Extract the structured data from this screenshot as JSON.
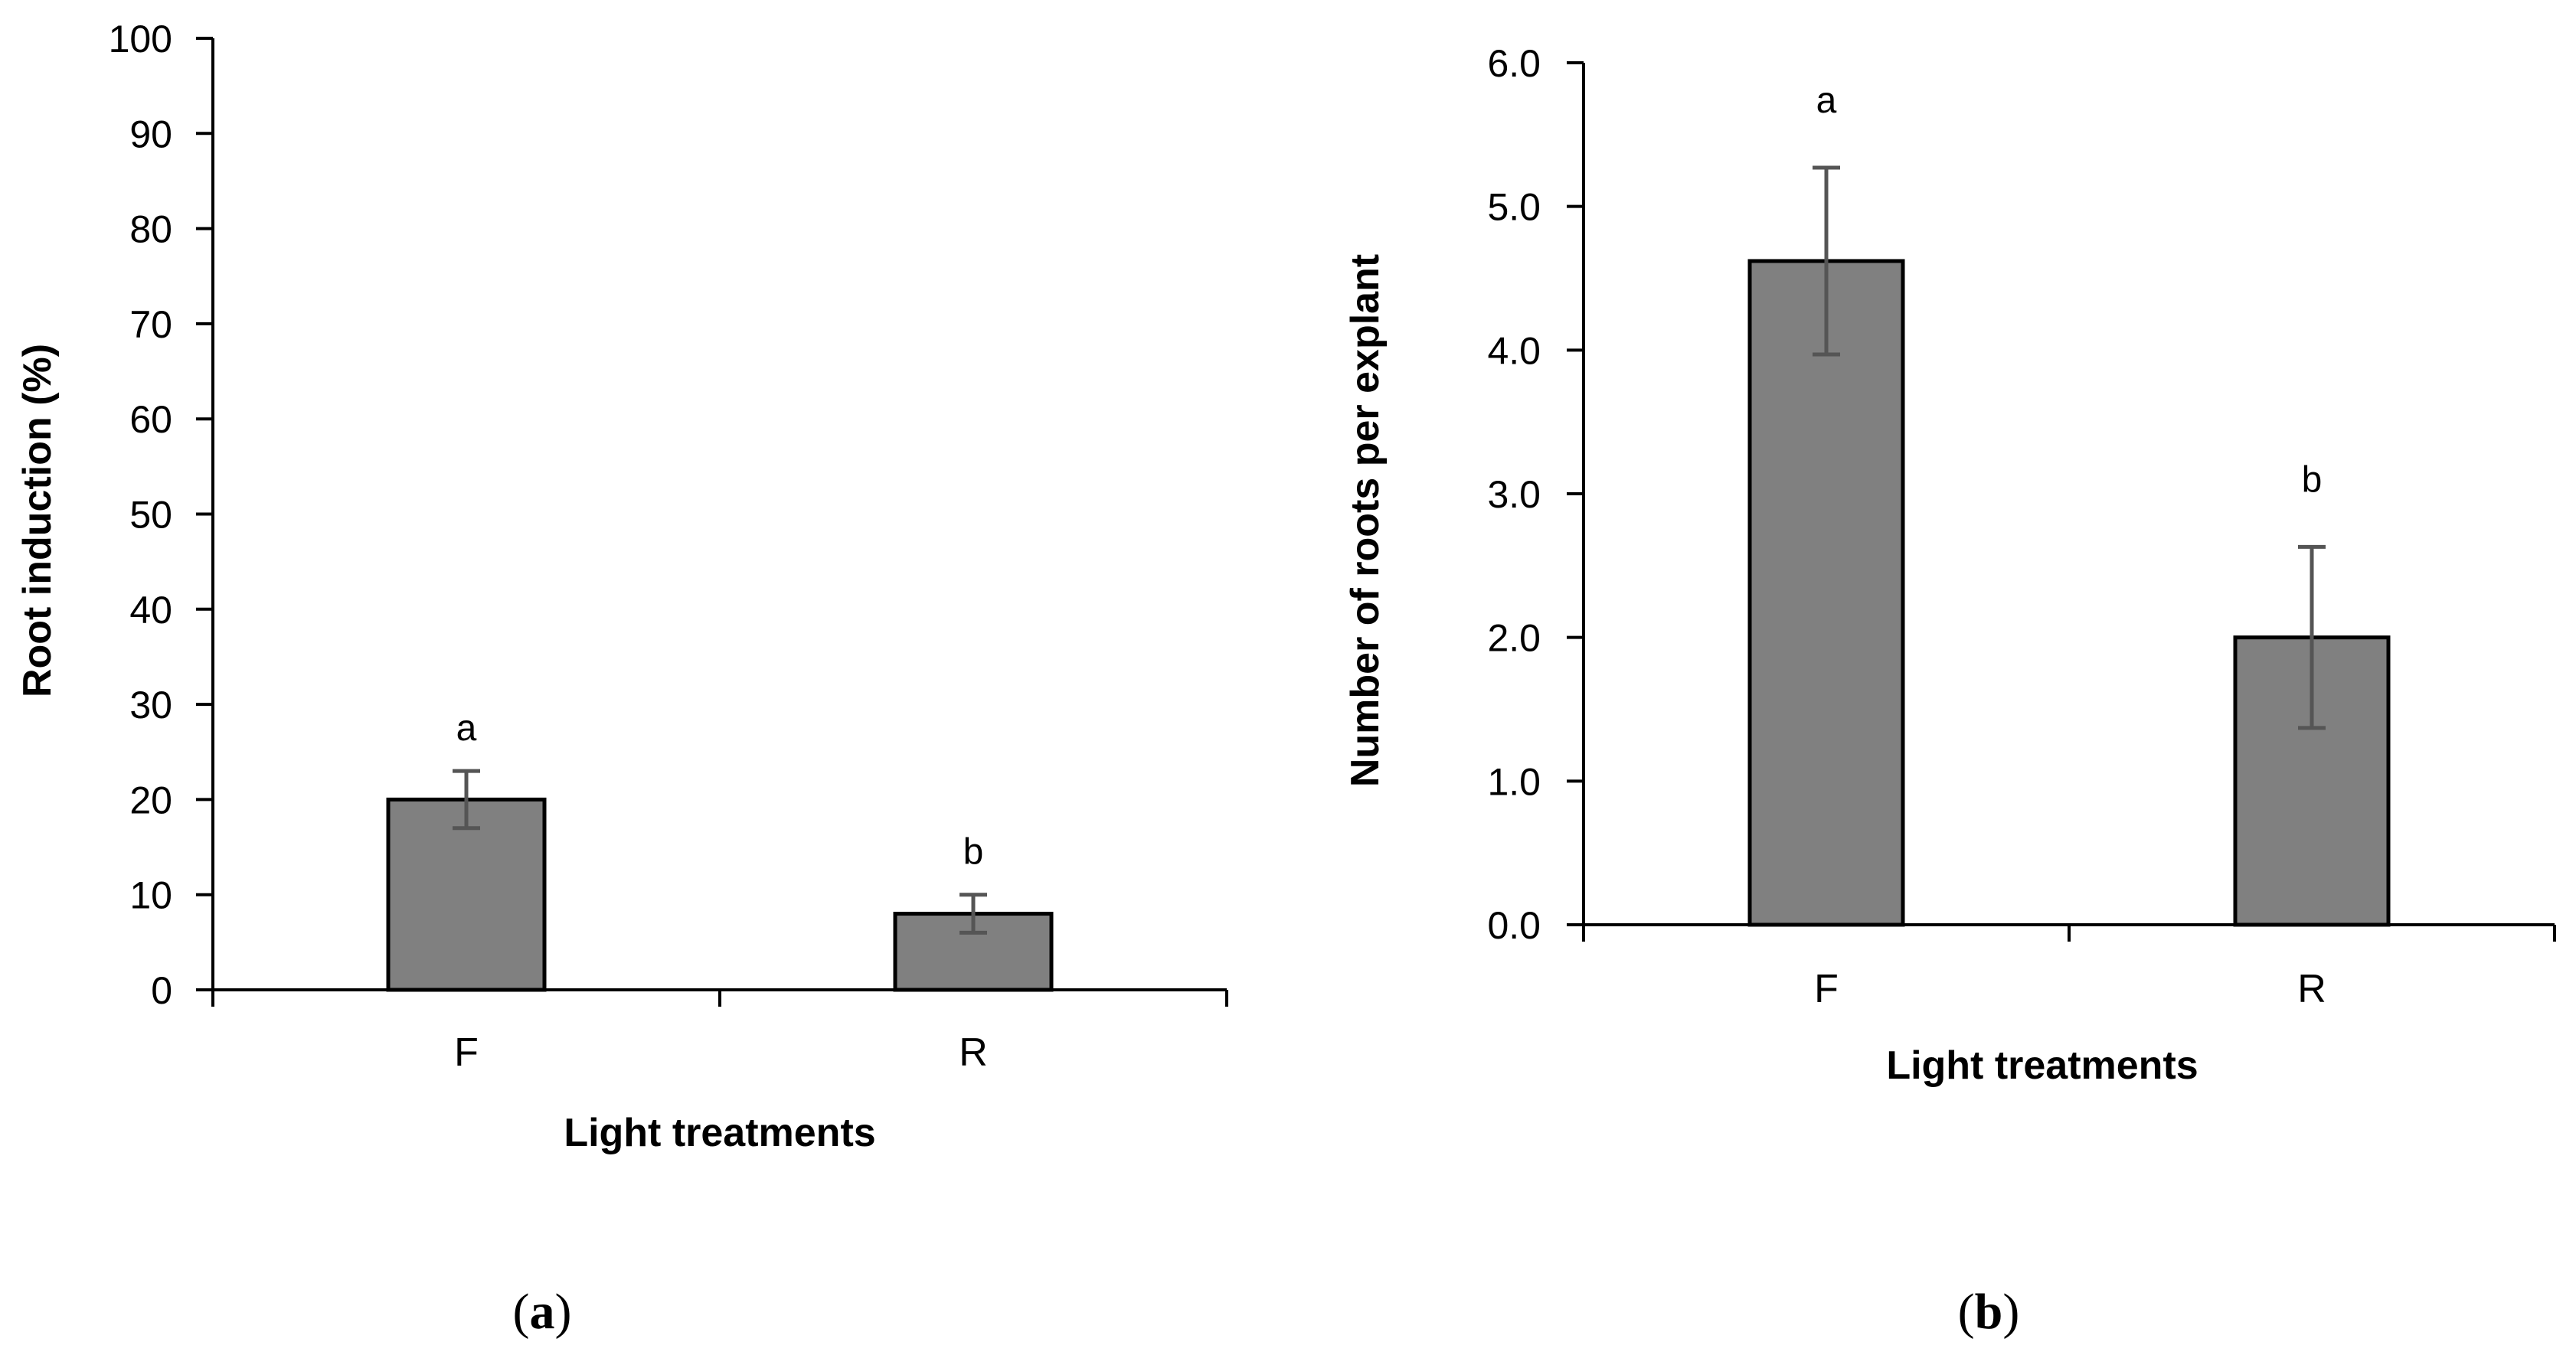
{
  "figure": {
    "colors": {
      "bar_fill": "#808080",
      "bar_stroke": "#000000",
      "error_bar": "#555555",
      "axis": "#000000"
    }
  },
  "chart_data": [
    {
      "type": "bar",
      "panel_label": "a",
      "categories": [
        "F",
        "R"
      ],
      "values": [
        20,
        8
      ],
      "errors": [
        3,
        2
      ],
      "significance": [
        "a",
        "b"
      ],
      "xlabel": "Light treatments",
      "ylabel": "Root induction (%)",
      "ylim": [
        0,
        100
      ],
      "yticks": [
        0,
        10,
        20,
        30,
        40,
        50,
        60,
        70,
        80,
        90,
        100
      ],
      "ytick_labels": [
        "0",
        "10",
        "20",
        "30",
        "40",
        "50",
        "60",
        "70",
        "80",
        "90",
        "100"
      ],
      "grid": false
    },
    {
      "type": "bar",
      "panel_label": "b",
      "categories": [
        "F",
        "R"
      ],
      "values": [
        4.62,
        2.0
      ],
      "errors": [
        0.65,
        0.63
      ],
      "significance": [
        "a",
        "b"
      ],
      "xlabel": "Light treatments",
      "ylabel": "Number of roots per explant",
      "ylim": [
        0,
        6
      ],
      "yticks": [
        0,
        1,
        2,
        3,
        4,
        5,
        6
      ],
      "ytick_labels": [
        "0.0",
        "1.0",
        "2.0",
        "3.0",
        "4.0",
        "5.0",
        "6.0"
      ],
      "grid": false
    }
  ]
}
